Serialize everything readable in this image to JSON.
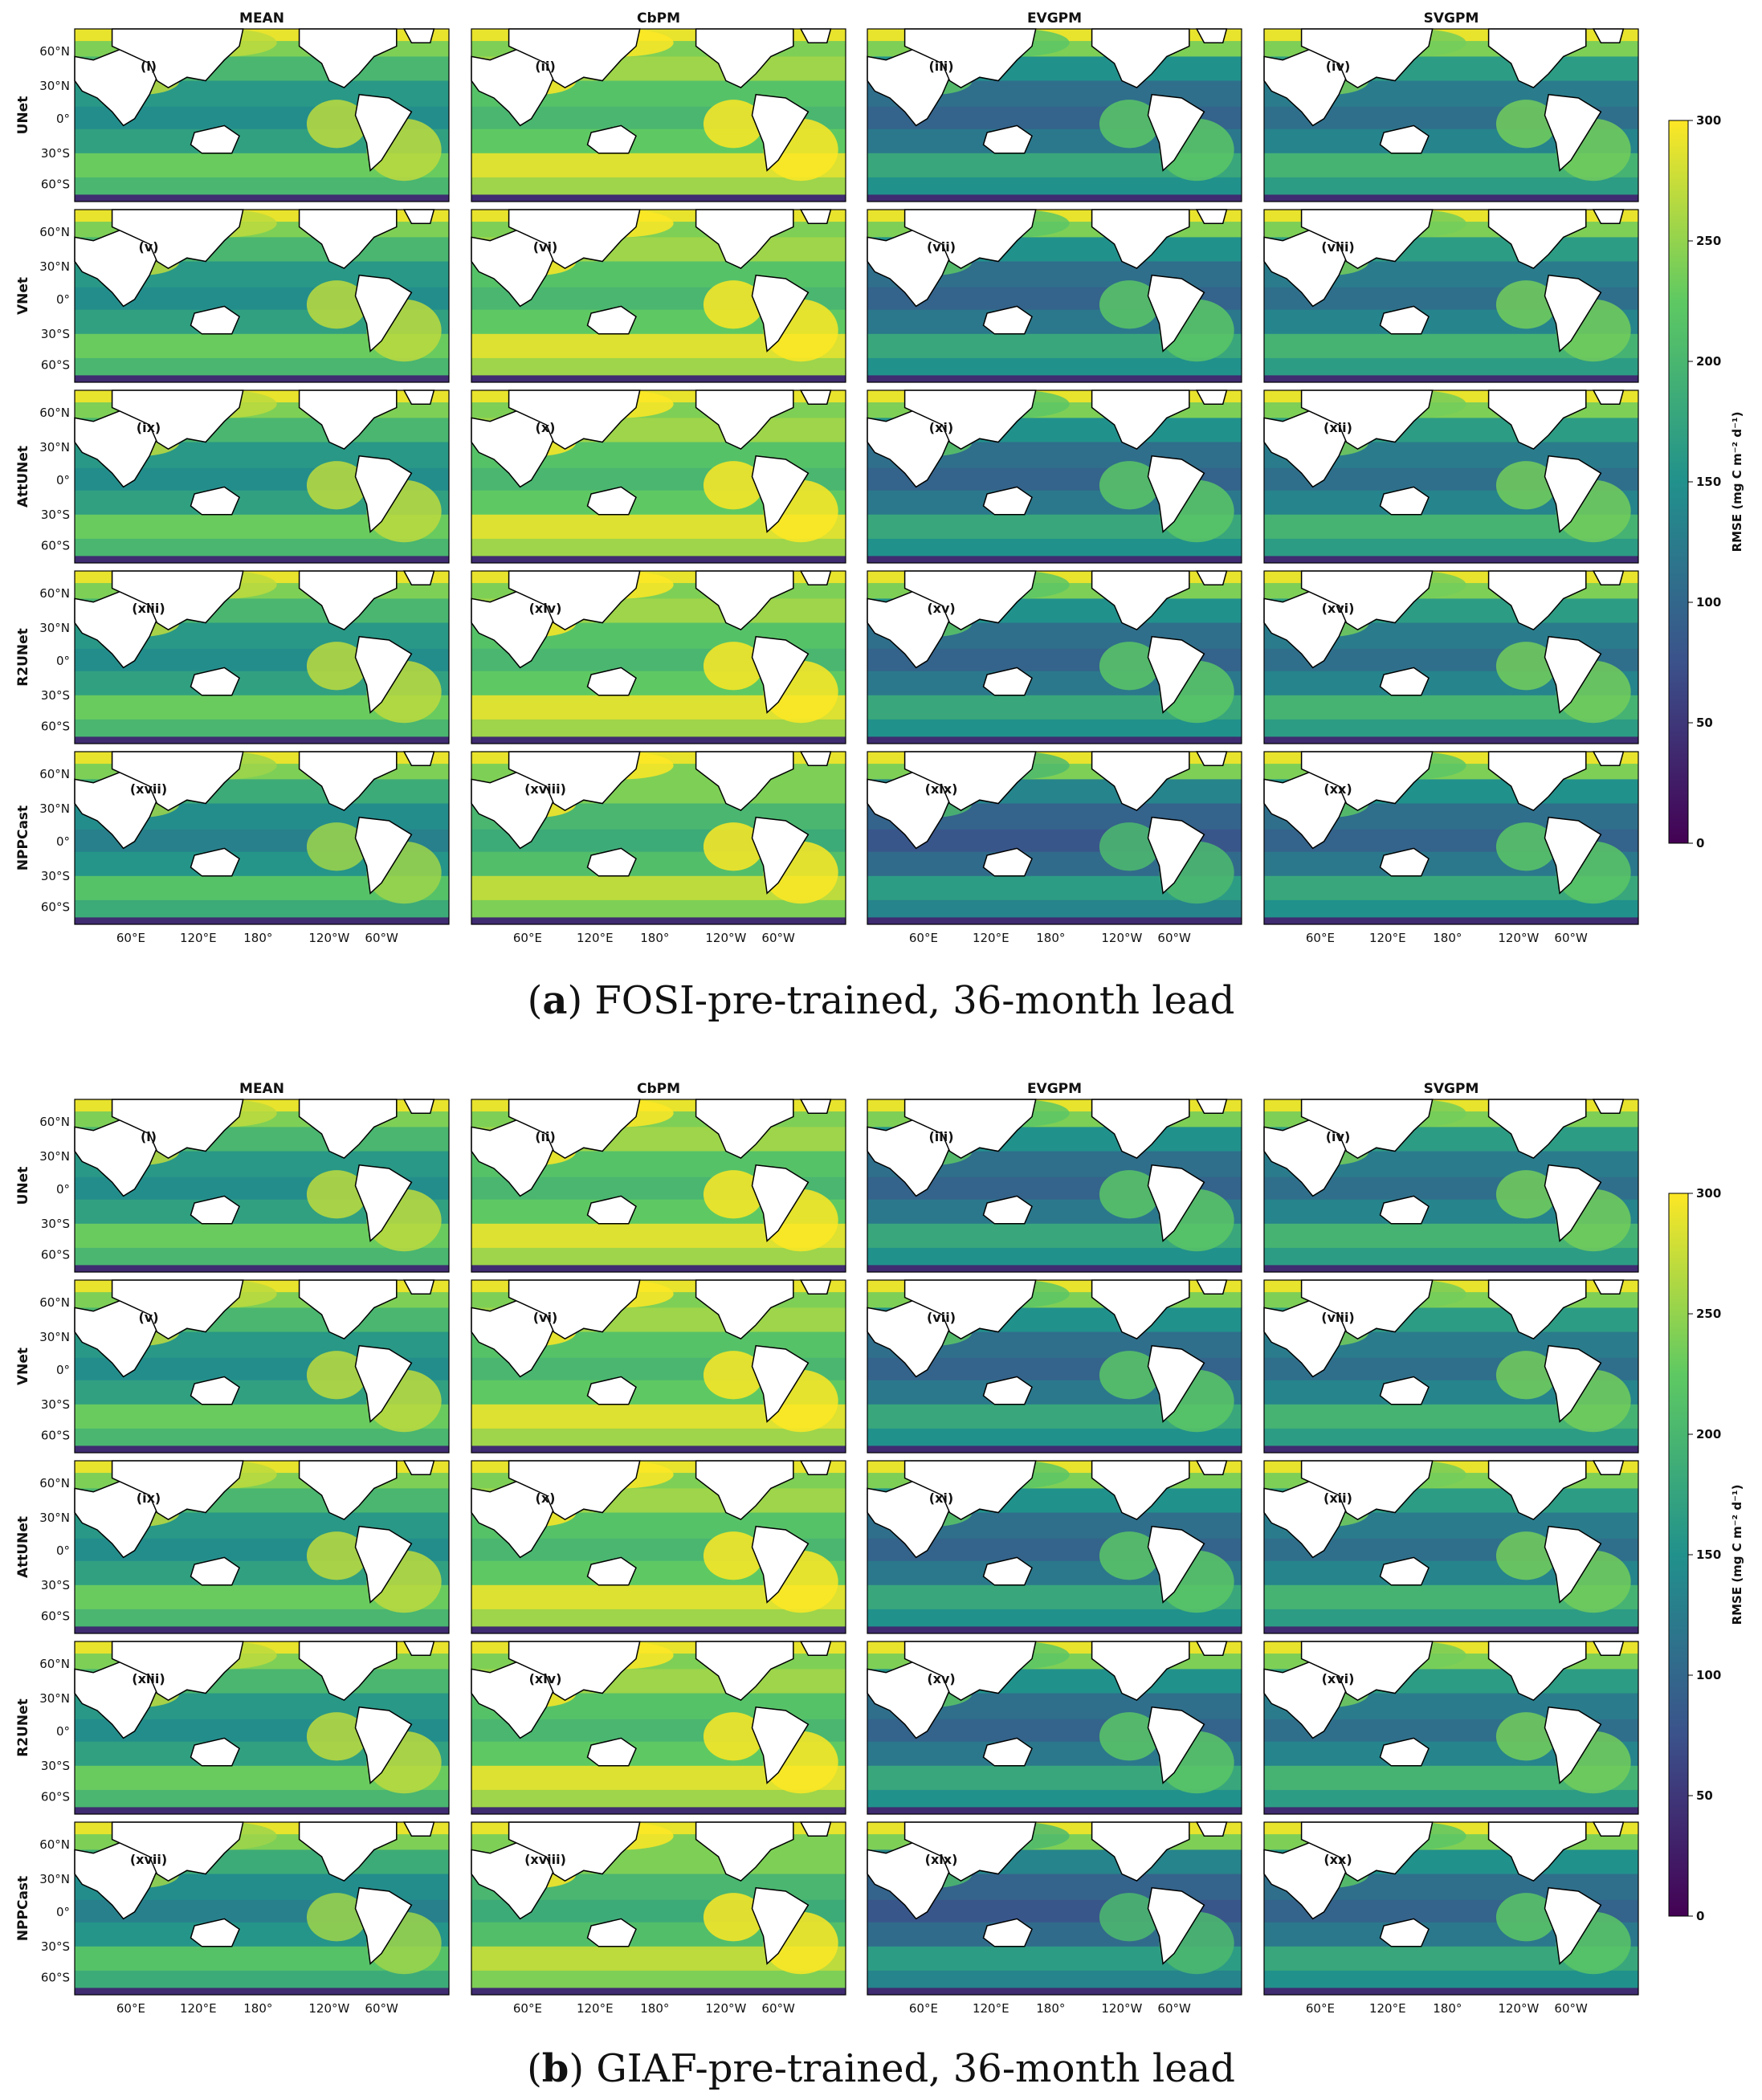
{
  "columns": [
    "MEAN",
    "CbPM",
    "EVGPM",
    "SVGPM"
  ],
  "rows": [
    "UNet",
    "VNet",
    "AttUNet",
    "R2UNet",
    "NPPCast"
  ],
  "panel_labels": [
    [
      "(i)",
      "(ii)",
      "(iii)",
      "(iv)"
    ],
    [
      "(v)",
      "(vi)",
      "(vii)",
      "(viii)"
    ],
    [
      "(ix)",
      "(x)",
      "(xi)",
      "(xii)"
    ],
    [
      "(xiii)",
      "(xiv)",
      "(xv)",
      "(xvi)"
    ],
    [
      "(xvii)",
      "(xviii)",
      "(xix)",
      "(xx)"
    ]
  ],
  "lat_ticks": [
    "60°N",
    "30°N",
    "0°",
    "30°S",
    "60°S"
  ],
  "lon_ticks": [
    "60°E",
    "120°E",
    "180°",
    "120°W",
    "60°W"
  ],
  "colorbar": {
    "label": "RMSE (mg C m⁻² d⁻¹)",
    "ticks": [
      "0",
      "50",
      "100",
      "150",
      "200",
      "250",
      "300"
    ],
    "min": 0,
    "max": 300,
    "colormap": [
      "#440154",
      "#3b528b",
      "#21918c",
      "#5ec962",
      "#fde725"
    ]
  },
  "figures": [
    {
      "letter": "a",
      "caption_rest": " FOSI-pre-trained, 36-month lead"
    },
    {
      "letter": "b",
      "caption_rest": " GIAF-pre-trained, 36-month lead"
    }
  ],
  "palette": {
    "land": "#ffffff",
    "low": "#3a2f73",
    "mid": "#2b7e8e",
    "high": "#f5e020"
  }
}
